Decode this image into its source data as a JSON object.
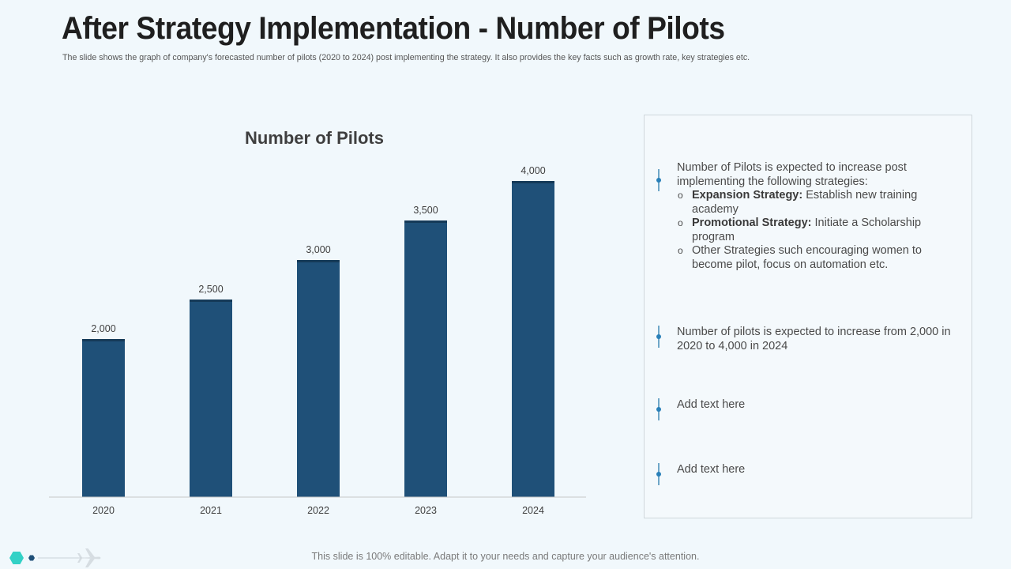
{
  "header": {
    "title": "After Strategy Implementation - Number of Pilots",
    "subtitle": "The slide shows the graph of company's forecasted number of pilots (2020 to 2024) post implementing the strategy. It also provides the key facts such as growth rate, key strategies etc."
  },
  "chart_data": {
    "type": "bar",
    "title": "Number of Pilots",
    "categories": [
      "2020",
      "2021",
      "2022",
      "2023",
      "2024"
    ],
    "values": [
      2000,
      2500,
      3000,
      3500,
      4000
    ],
    "value_labels": [
      "2,000",
      "2,500",
      "3,000",
      "3,500",
      "4,000"
    ],
    "xlabel": "",
    "ylabel": "",
    "ylim": [
      0,
      4000
    ],
    "grid": false,
    "bar_color": "#1f5078"
  },
  "facts": {
    "point1": {
      "intro": "Number of Pilots is expected to increase post implementing the following strategies:",
      "items": [
        {
          "bold": "Expansion Strategy:",
          "text": " Establish new training academy"
        },
        {
          "bold": "Promotional Strategy:",
          "text": " Initiate a Scholarship program"
        },
        {
          "bold": "",
          "text": "Other Strategies such encouraging women to become pilot, focus on automation etc."
        }
      ],
      "bullet": "o"
    },
    "point2": "Number of pilots is expected to increase from 2,000 in 2020 to 4,000 in 2024",
    "point3": "Add text here",
    "point4": "Add text here"
  },
  "footer": {
    "text": "This slide is 100% editable. Adapt it to your needs and capture your audience's attention."
  },
  "colors": {
    "background": "#f1f8fc",
    "accent_teal": "#33d1c6",
    "accent_navy": "#1f5078",
    "marker": "#2980b9"
  },
  "icons": [
    "hexagon-icon",
    "airplane-icon"
  ]
}
